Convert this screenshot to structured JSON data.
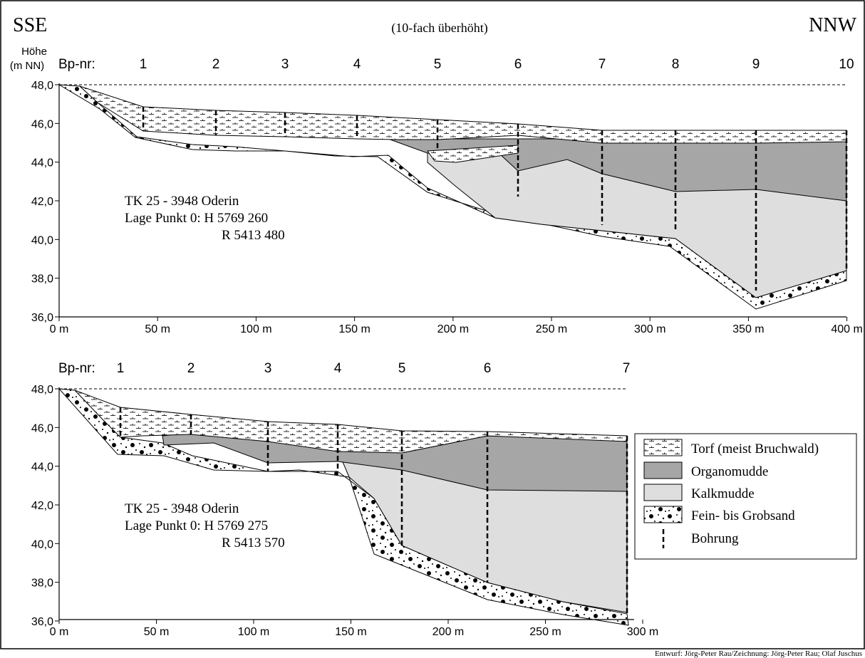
{
  "header": {
    "left": "SSE",
    "center": "(10-fach überhöht)",
    "right": "NNW"
  },
  "axis_label_line1": "Höhe",
  "axis_label_line2": "(m NN)",
  "bp_label": "Bp-nr:",
  "y_ticks": [
    "48,0",
    "46,0",
    "44,0",
    "42,0",
    "40,0",
    "38,0",
    "36,0"
  ],
  "profile1": {
    "bp_numbers": [
      "1",
      "2",
      "3",
      "4",
      "5",
      "6",
      "7",
      "8",
      "9",
      "10"
    ],
    "x_ticks": [
      "0 m",
      "50 m",
      "100 m",
      "150 m",
      "200 m",
      "250 m",
      "300 m",
      "350 m",
      "400 m"
    ],
    "info": [
      "TK 25 - 3948 Oderin",
      "Lage Punkt 0:  H 5769 260",
      "R 5413 480"
    ]
  },
  "profile2": {
    "bp_numbers": [
      "1",
      "2",
      "3",
      "4",
      "5",
      "6",
      "7"
    ],
    "x_ticks": [
      "0 m",
      "50 m",
      "100 m",
      "150 m",
      "200 m",
      "250 m",
      "300 m"
    ],
    "info": [
      "TK 25 - 3948 Oderin",
      "Lage Punkt 0:  H 5769 275",
      "R 5413 570"
    ]
  },
  "legend": {
    "items": [
      {
        "label": "Torf (meist Bruchwald)",
        "swatch": "peat-swatch"
      },
      {
        "label": "Organomudde",
        "swatch": "organomudde-swatch"
      },
      {
        "label": "Kalkmudde",
        "swatch": "kalkmudde-swatch"
      },
      {
        "label": "Fein- bis Grobsand",
        "swatch": "sand-swatch"
      },
      {
        "label": "Bohrung",
        "swatch": "borehole-swatch"
      }
    ]
  },
  "credit": "Entwurf: Jörg-Peter Rau/Zeichnung: Jörg-Peter Rau; Olaf Juschus",
  "colors": {
    "organomudde": "#a6a6a6",
    "kalkmudde": "#dedede",
    "peat": "#ffffff",
    "sand": "#ffffff",
    "line": "#000000"
  }
}
